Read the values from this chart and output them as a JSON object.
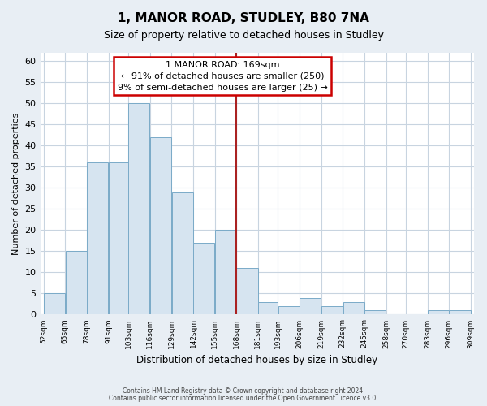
{
  "title": "1, MANOR ROAD, STUDLEY, B80 7NA",
  "subtitle": "Size of property relative to detached houses in Studley",
  "xlabel": "Distribution of detached houses by size in Studley",
  "ylabel": "Number of detached properties",
  "bar_color": "#d6e4f0",
  "bar_edge_color": "#7aaac8",
  "plot_bg_color": "#ffffff",
  "fig_bg_color": "#e8eef4",
  "grid_color": "#c8d4e0",
  "bins": [
    52,
    65,
    78,
    91,
    103,
    116,
    129,
    142,
    155,
    168,
    181,
    193,
    206,
    219,
    232,
    245,
    258,
    270,
    283,
    296,
    309
  ],
  "counts": [
    5,
    15,
    36,
    36,
    50,
    42,
    29,
    17,
    20,
    11,
    3,
    2,
    4,
    2,
    3,
    1,
    0,
    0,
    1,
    1
  ],
  "tick_labels": [
    "52sqm",
    "65sqm",
    "78sqm",
    "91sqm",
    "103sqm",
    "116sqm",
    "129sqm",
    "142sqm",
    "155sqm",
    "168sqm",
    "181sqm",
    "193sqm",
    "206sqm",
    "219sqm",
    "232sqm",
    "245sqm",
    "258sqm",
    "270sqm",
    "283sqm",
    "296sqm",
    "309sqm"
  ],
  "property_line_x": 168,
  "vline_color": "#aa2222",
  "annotation_title": "1 MANOR ROAD: 169sqm",
  "annotation_line1": "← 91% of detached houses are smaller (250)",
  "annotation_line2": "9% of semi-detached houses are larger (25) →",
  "ylim": [
    0,
    62
  ],
  "yticks": [
    0,
    5,
    10,
    15,
    20,
    25,
    30,
    35,
    40,
    45,
    50,
    55,
    60
  ],
  "footer1": "Contains HM Land Registry data © Crown copyright and database right 2024.",
  "footer2": "Contains public sector information licensed under the Open Government Licence v3.0."
}
